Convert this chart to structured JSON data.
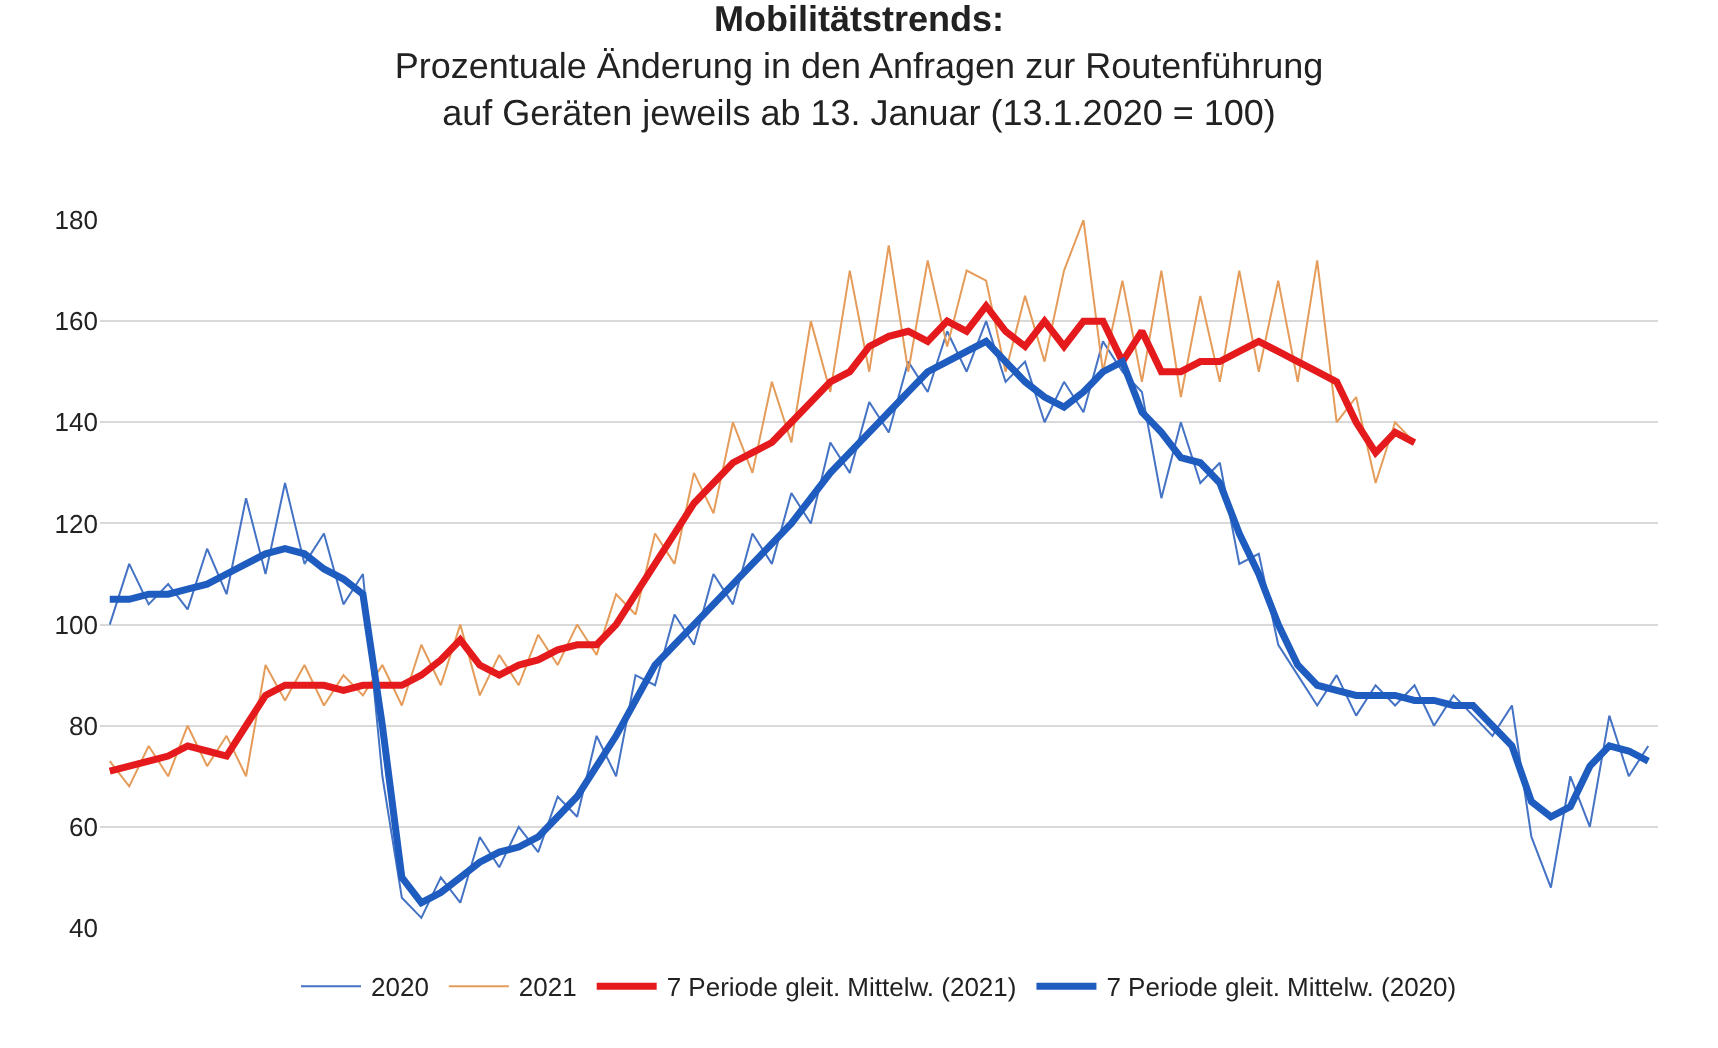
{
  "chart_data": {
    "type": "line",
    "title": "Mobilitätstrends:",
    "subtitle": "Prozentuale Änderung in den Anfragen zur Routenführung\nauf Geräten jeweils ab 13. Januar (13.1.2020 = 100)",
    "categories": [
      null,
      null,
      null,
      null,
      null,
      null,
      null,
      null,
      null,
      null,
      null,
      null,
      null,
      null,
      null,
      null,
      null,
      null,
      null,
      null,
      null,
      null,
      null,
      null,
      null,
      null,
      null,
      null,
      null,
      null,
      null,
      null,
      null,
      null,
      null,
      null,
      null,
      null,
      null,
      null,
      null,
      null,
      null,
      null,
      null,
      null,
      null,
      null,
      null,
      null,
      null,
      null,
      null,
      null,
      null,
      null,
      null,
      null,
      null,
      null,
      null,
      null,
      null,
      null,
      null,
      null,
      null,
      null,
      null,
      null,
      null,
      null,
      null,
      null,
      null,
      null,
      null,
      null,
      null,
      null
    ],
    "series": [
      {
        "name": "2020",
        "color": "#4472c4",
        "values": [
          100,
          112,
          104,
          108,
          103,
          115,
          106,
          125,
          110,
          128,
          112,
          118,
          104,
          110,
          70,
          46,
          42,
          50,
          45,
          58,
          52,
          60,
          55,
          66,
          62,
          78,
          70,
          90,
          88,
          102,
          96,
          110,
          104,
          118,
          112,
          126,
          120,
          136,
          130,
          144,
          138,
          152,
          146,
          158,
          150,
          160,
          148,
          152,
          140,
          148,
          142,
          156,
          150,
          146,
          125,
          140,
          128,
          132,
          112,
          114,
          96,
          90,
          84,
          90,
          82,
          88,
          84,
          88,
          80,
          86,
          82,
          78,
          84,
          58,
          48,
          70,
          60,
          82,
          70,
          76
        ]
      },
      {
        "name": "2021",
        "color": "#e59c5a",
        "values": [
          73,
          68,
          76,
          70,
          80,
          72,
          78,
          70,
          92,
          85,
          92,
          84,
          90,
          86,
          92,
          84,
          96,
          88,
          100,
          86,
          94,
          88,
          98,
          92,
          100,
          94,
          106,
          102,
          118,
          112,
          130,
          122,
          140,
          130,
          148,
          136,
          160,
          146,
          170,
          150,
          175,
          150,
          172,
          155,
          170,
          168,
          150,
          165,
          152,
          170,
          180,
          150,
          168,
          148,
          170,
          145,
          165,
          148,
          170,
          150,
          168,
          148,
          172,
          140,
          145,
          128,
          140,
          136,
          null,
          null,
          null,
          null,
          null,
          null,
          null,
          null,
          null,
          null,
          null,
          null
        ]
      },
      {
        "name": "7 Periode gleit. Mittelw. (2021)",
        "color": "#e41a1c",
        "values": [
          71,
          72,
          73,
          74,
          76,
          75,
          74,
          80,
          86,
          88,
          88,
          88,
          87,
          88,
          88,
          88,
          90,
          93,
          97,
          92,
          90,
          92,
          93,
          95,
          96,
          96,
          100,
          106,
          112,
          118,
          124,
          128,
          132,
          134,
          136,
          140,
          144,
          148,
          150,
          155,
          157,
          158,
          156,
          160,
          158,
          163,
          158,
          155,
          160,
          155,
          160,
          160,
          152,
          158,
          150,
          150,
          152,
          152,
          154,
          156,
          154,
          152,
          150,
          148,
          140,
          134,
          138,
          136,
          null,
          null,
          null,
          null,
          null,
          null,
          null,
          null,
          null,
          null,
          null,
          null
        ]
      },
      {
        "name": "7 Periode gleit. Mittelw. (2020)",
        "color": "#1f5cbf",
        "values": [
          105,
          105,
          106,
          106,
          107,
          108,
          110,
          112,
          114,
          115,
          114,
          111,
          109,
          106,
          80,
          50,
          45,
          47,
          50,
          53,
          55,
          56,
          58,
          62,
          66,
          72,
          78,
          85,
          92,
          96,
          100,
          104,
          108,
          112,
          116,
          120,
          125,
          130,
          134,
          138,
          142,
          146,
          150,
          152,
          154,
          156,
          152,
          148,
          145,
          143,
          146,
          150,
          152,
          142,
          138,
          133,
          132,
          128,
          118,
          110,
          100,
          92,
          88,
          87,
          86,
          86,
          86,
          85,
          85,
          84,
          84,
          80,
          76,
          65,
          62,
          64,
          72,
          76,
          75,
          73
        ]
      }
    ],
    "ylim": [
      40,
      180
    ],
    "yticks": [
      40,
      60,
      80,
      100,
      120,
      140,
      160,
      180
    ],
    "grid": "y",
    "legend": "bottom",
    "tick_labels": "y"
  }
}
